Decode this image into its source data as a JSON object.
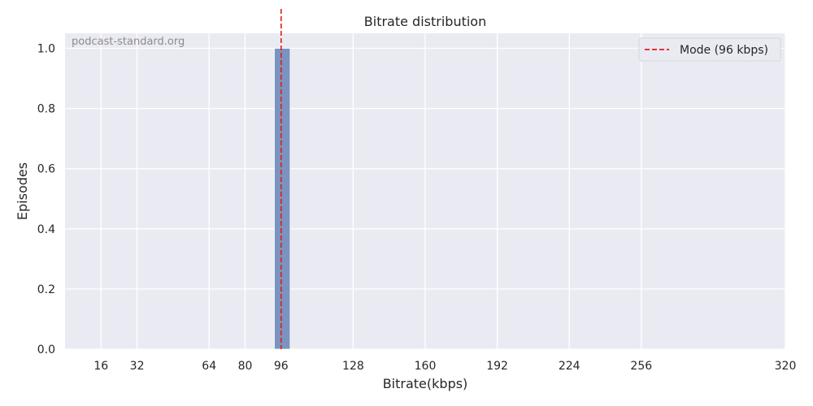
{
  "chart_data": {
    "type": "bar",
    "title": "Bitrate distribution",
    "xlabel": "Bitrate(kbps)",
    "ylabel": "Episodes",
    "watermark": "podcast-standard.org",
    "xlim": [
      0,
      320
    ],
    "ylim": [
      0,
      1.05
    ],
    "x_ticks": [
      16,
      32,
      64,
      80,
      96,
      128,
      160,
      192,
      224,
      256,
      320
    ],
    "y_ticks": [
      0.0,
      0.2,
      0.4,
      0.6,
      0.8,
      1.0
    ],
    "y_tick_labels": [
      "0.0",
      "0.2",
      "0.4",
      "0.6",
      "0.8",
      "1.0"
    ],
    "bars": [
      {
        "x_start": 93,
        "x_end": 100,
        "value": 1
      }
    ],
    "reference_line": {
      "x": 96,
      "label": "Mode (96 kbps)",
      "color": "#e41a1c",
      "style": "dashed"
    },
    "bar_color": "#7a93bf",
    "background_color": "#eaeaf2",
    "grid": true,
    "legend_position": "top-right"
  }
}
